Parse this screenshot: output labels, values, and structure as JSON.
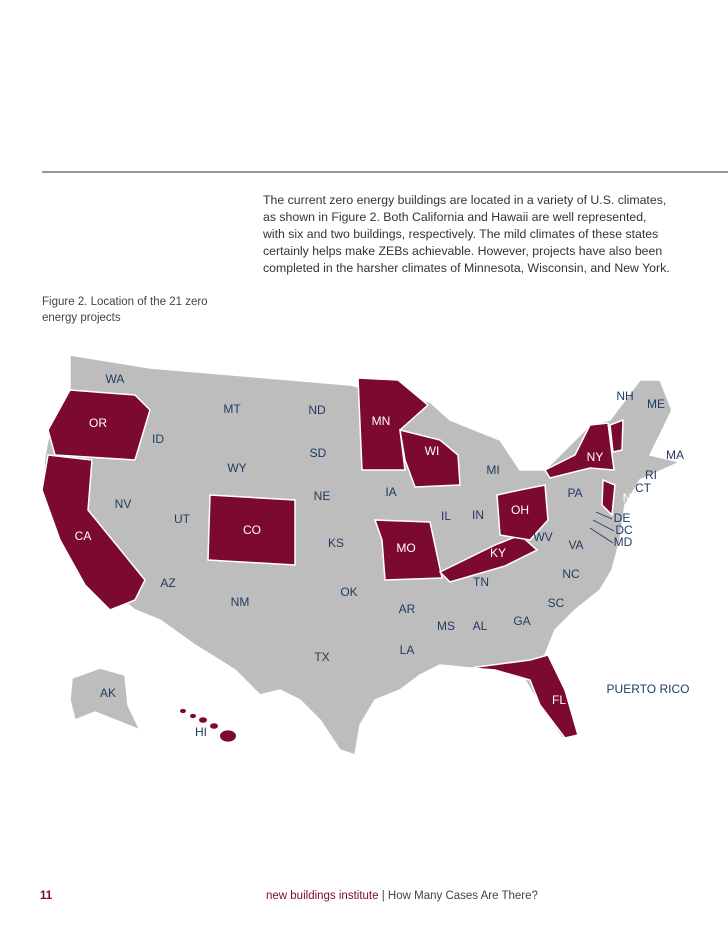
{
  "paragraph": [
    "The current zero energy buildings are located in a variety of U.S. climates,",
    "as shown in Figure 2. Both California and Hawaii are well represented,",
    "with six and two buildings, respectively. The mild climates of these states",
    "certainly helps make ZEBs achievable. However, projects have also been",
    "completed in the harsher climates of Minnesota, Wisconsin, and New York."
  ],
  "figure_caption": [
    "Figure 2. Location of the 21 zero",
    "energy projects"
  ],
  "map": {
    "highlight_color": "#7b0a2e",
    "base_color": "#bdbdbd",
    "states": [
      "WA",
      "OR",
      "ID",
      "MT",
      "ND",
      "MN",
      "WI",
      "MI",
      "NY",
      "VT",
      "NH",
      "ME",
      "MA",
      "RI",
      "CT",
      "NJ",
      "PA",
      "OH",
      "IN",
      "IL",
      "IA",
      "NE",
      "SD",
      "WY",
      "NV",
      "UT",
      "CO",
      "CA",
      "KS",
      "MO",
      "KY",
      "WV",
      "VA",
      "DE",
      "DC",
      "MD",
      "NC",
      "TN",
      "OK",
      "AR",
      "SC",
      "GA",
      "AL",
      "MS",
      "AZ",
      "NM",
      "TX",
      "LA",
      "FL",
      "AK",
      "HI",
      "PUERTO RICO"
    ],
    "highlighted": [
      "OR",
      "CA",
      "CO",
      "MN",
      "WI",
      "MO",
      "KY",
      "OH",
      "NY",
      "VT",
      "NJ",
      "FL",
      "HI"
    ]
  },
  "footer": {
    "page_number": "11",
    "publisher": "new buildings institute",
    "separator": "|",
    "section": "How Many Cases Are There?"
  }
}
